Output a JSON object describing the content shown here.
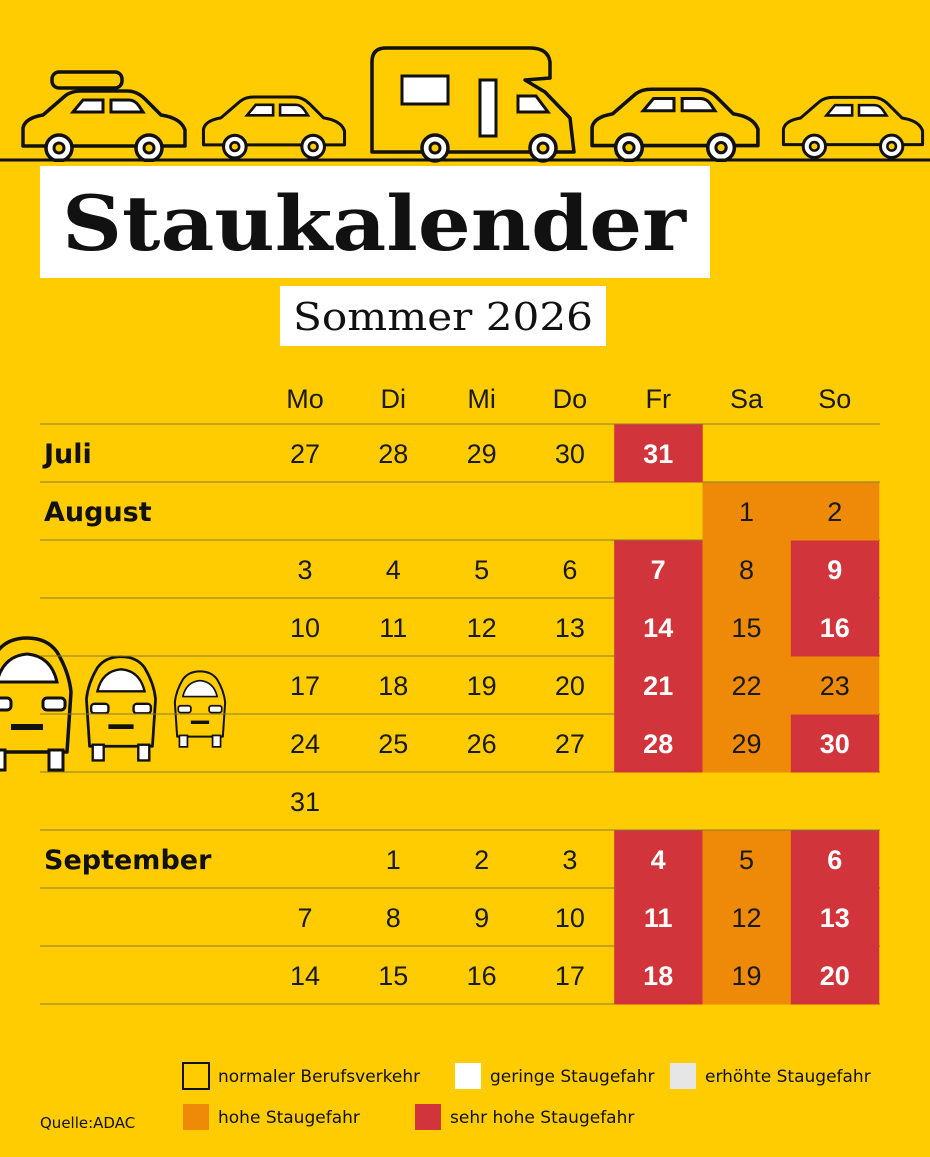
{
  "header": {
    "title": "Staukalender",
    "subtitle": "Sommer 2026"
  },
  "calendar": {
    "weekdays": [
      "Mo",
      "Di",
      "Mi",
      "Do",
      "Fr",
      "Sa",
      "So"
    ],
    "rows": [
      {
        "month": "Juli",
        "days": [
          27,
          28,
          29,
          30,
          31,
          null,
          null
        ],
        "colors": [
          null,
          null,
          null,
          null,
          "#d1343a",
          null,
          null
        ]
      },
      {
        "month": "August",
        "days": [
          null,
          null,
          null,
          null,
          null,
          1,
          2
        ],
        "colors": [
          null,
          null,
          null,
          null,
          null,
          "#ef8a08",
          "#ef8a08"
        ]
      },
      {
        "days": [
          3,
          4,
          5,
          6,
          7,
          8,
          9
        ],
        "colors": [
          null,
          null,
          null,
          null,
          "#d1343a",
          "#ef8a08",
          "#d1343a"
        ]
      },
      {
        "days": [
          10,
          11,
          12,
          13,
          14,
          15,
          16
        ],
        "colors": [
          null,
          null,
          null,
          null,
          "#d1343a",
          "#ef8a08",
          "#d1343a"
        ]
      },
      {
        "days": [
          17,
          18,
          19,
          20,
          21,
          22,
          23
        ],
        "colors": [
          null,
          null,
          null,
          null,
          "#d1343a",
          "#ef8a08",
          "#ef8a08"
        ]
      },
      {
        "days": [
          24,
          25,
          26,
          27,
          28,
          29,
          30
        ],
        "colors": [
          null,
          null,
          null,
          null,
          "#d1343a",
          "#ef8a08",
          "#d1343a"
        ]
      },
      {
        "days": [
          31,
          null,
          null,
          null,
          null,
          null,
          null
        ],
        "colors": [
          null,
          null,
          null,
          null,
          null,
          null,
          null
        ]
      },
      {
        "month": "September",
        "days": [
          null,
          1,
          2,
          3,
          4,
          5,
          6
        ],
        "colors": [
          null,
          null,
          null,
          null,
          "#d1343a",
          "#ef8a08",
          "#d1343a"
        ]
      },
      {
        "days": [
          7,
          8,
          9,
          10,
          11,
          12,
          13
        ],
        "colors": [
          null,
          null,
          null,
          null,
          "#d1343a",
          "#ef8a08",
          "#d1343a"
        ]
      },
      {
        "days": [
          14,
          15,
          16,
          17,
          18,
          19,
          20
        ],
        "colors": [
          null,
          null,
          null,
          null,
          "#d1343a",
          "#ef8a08",
          "#d1343a"
        ]
      }
    ]
  },
  "legend": {
    "items": [
      {
        "label": "normaler Berufsverkehr",
        "color": "#fecc00"
      },
      {
        "label": "geringe Staugefahr",
        "color": "#ffffff"
      },
      {
        "label": "erhöhte Staugefahr",
        "color": "#e6e6e6"
      },
      {
        "label": "hohe Staugefahr",
        "color": "#ef8a08"
      },
      {
        "label": "sehr hohe Staugefahr",
        "color": "#d1343a"
      }
    ]
  },
  "source": "Quelle:ADAC"
}
